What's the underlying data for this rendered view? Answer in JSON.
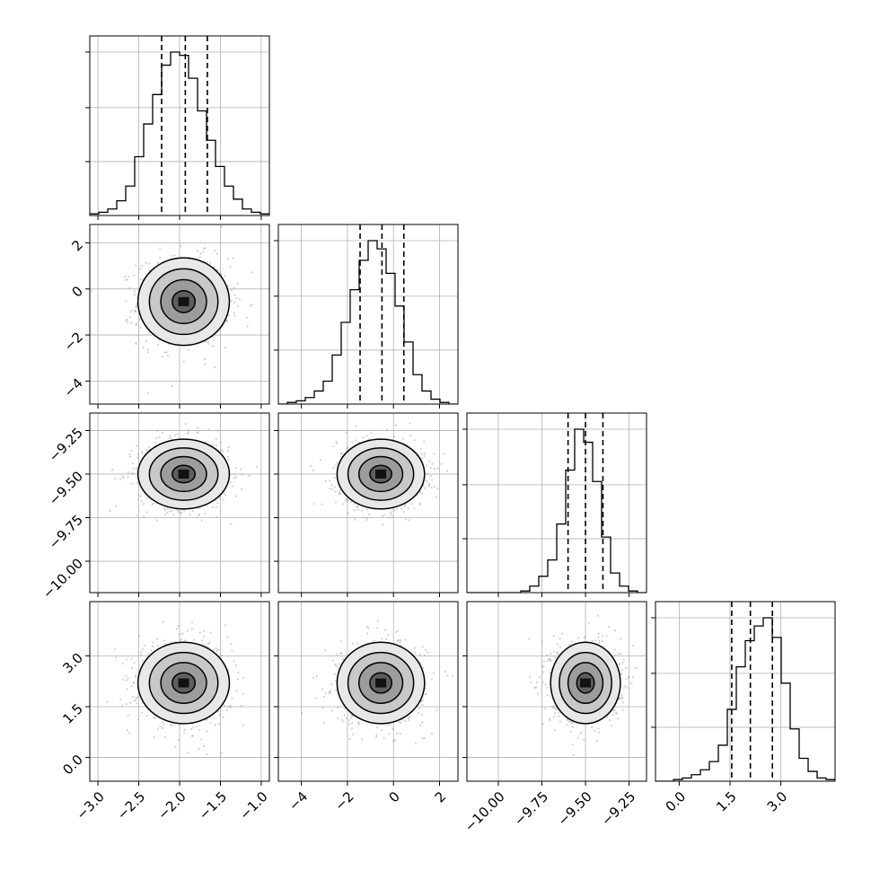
{
  "colors": {
    "frame": "#000000",
    "grid": "#b0b0b0",
    "contour": "#000000",
    "scatter": "#9a9a9a",
    "hist": "#000000"
  },
  "chart_data": {
    "type": "corner",
    "grid": true,
    "params": [
      {
        "mean": -1.95,
        "sd": 0.28,
        "range": [
          -3.1,
          -0.9
        ],
        "ticks": [
          -3.0,
          -2.5,
          -2.0,
          -1.5,
          -1.0
        ],
        "tick_labels": [
          "−3.0",
          "−2.5",
          "−2.0",
          "−1.5",
          "−1.0"
        ],
        "quantiles": [
          -2.22,
          -1.93,
          -1.66
        ]
      },
      {
        "mean": -0.55,
        "sd": 0.95,
        "range": [
          -5.0,
          2.8
        ],
        "ticks": [
          -4,
          -2,
          0,
          2
        ],
        "tick_labels": [
          "−4",
          "−2",
          "0",
          "2"
        ],
        "quantiles": [
          -1.45,
          -0.5,
          0.45
        ]
      },
      {
        "mean": -9.5,
        "sd": 0.1,
        "range": [
          -10.18,
          -9.15
        ],
        "ticks": [
          -10.0,
          -9.75,
          -9.5,
          -9.25
        ],
        "tick_labels": [
          "−10.00",
          "−9.75",
          "−9.50",
          "−9.25"
        ],
        "quantiles": [
          -9.6,
          -9.5,
          -9.4
        ]
      },
      {
        "mean": 2.2,
        "sd": 0.6,
        "range": [
          -0.7,
          4.6
        ],
        "ticks": [
          0.0,
          1.5,
          3.0
        ],
        "tick_labels": [
          "0.0",
          "1.5",
          "3.0"
        ],
        "quantiles": [
          1.55,
          2.1,
          2.75
        ]
      }
    ],
    "hist_peaks": [
      [
        0.01,
        0.02,
        0.04,
        0.09,
        0.18,
        0.36,
        0.56,
        0.74,
        0.92,
        1.0,
        0.98,
        0.84,
        0.64,
        0.46,
        0.3,
        0.18,
        0.1,
        0.04,
        0.02,
        0.01
      ],
      [
        0.0,
        0.01,
        0.02,
        0.04,
        0.08,
        0.14,
        0.3,
        0.5,
        0.7,
        0.88,
        1.0,
        0.95,
        0.8,
        0.6,
        0.38,
        0.18,
        0.08,
        0.03,
        0.01,
        0.0
      ],
      [
        0.0,
        0.0,
        0.0,
        0.0,
        0.0,
        0.0,
        0.01,
        0.04,
        0.1,
        0.2,
        0.42,
        0.75,
        1.0,
        0.92,
        0.68,
        0.34,
        0.12,
        0.04,
        0.01,
        0.0
      ],
      [
        0.0,
        0.0,
        0.01,
        0.02,
        0.04,
        0.07,
        0.12,
        0.22,
        0.44,
        0.7,
        0.86,
        0.95,
        1.0,
        0.88,
        0.6,
        0.32,
        0.14,
        0.06,
        0.02,
        0.01
      ]
    ],
    "contour_levels_sigma": [
      0.5,
      1.0,
      1.5,
      2.0
    ]
  }
}
